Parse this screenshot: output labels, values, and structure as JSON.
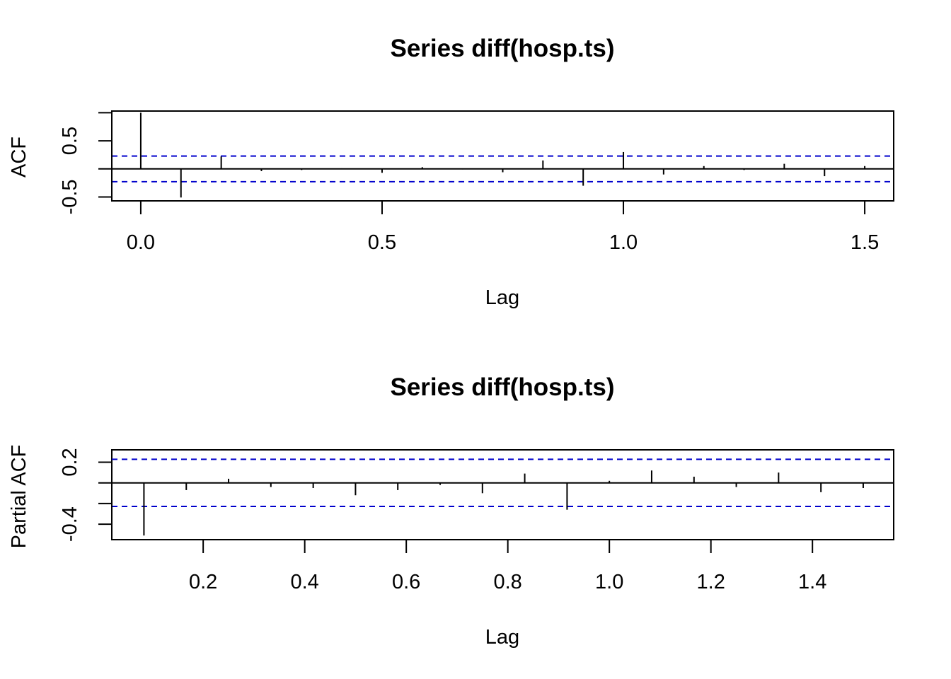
{
  "chart_data": [
    {
      "type": "bar",
      "title": "Series  diff(hosp.ts)",
      "xlabel": "Lag",
      "ylabel": "ACF",
      "xlim": [
        -0.06,
        1.56
      ],
      "ylim": [
        -0.57,
        1.03
      ],
      "x_ticks": [
        0.0,
        0.5,
        1.0,
        1.5
      ],
      "x_tick_labels": [
        "0.0",
        "0.5",
        "1.0",
        "1.5"
      ],
      "y_ticks": [
        -0.5,
        0.5
      ],
      "y_tick_labels": [
        "-0.5",
        "0.5"
      ],
      "y_minor_ticks": [
        -0.5,
        0.0,
        0.5,
        1.0
      ],
      "conf_limit": 0.228,
      "conf_color": "#0000cc",
      "lags": [
        0.0,
        0.0833,
        0.1667,
        0.25,
        0.3333,
        0.4167,
        0.5,
        0.5833,
        0.6667,
        0.75,
        0.8333,
        0.9167,
        1.0,
        1.0833,
        1.1667,
        1.25,
        1.3333,
        1.4167,
        1.5
      ],
      "values": [
        1.0,
        -0.51,
        0.22,
        -0.04,
        -0.02,
        0.01,
        -0.07,
        0.03,
        -0.01,
        -0.06,
        0.15,
        -0.3,
        0.3,
        -0.1,
        0.05,
        -0.02,
        0.09,
        -0.13,
        0.05
      ]
    },
    {
      "type": "bar",
      "title": "Series  diff(hosp.ts)",
      "xlabel": "Lag",
      "ylabel": "Partial ACF",
      "xlim": [
        0.02,
        1.56
      ],
      "ylim": [
        -0.55,
        0.32
      ],
      "x_ticks": [
        0.2,
        0.4,
        0.6,
        0.8,
        1.0,
        1.2,
        1.4
      ],
      "x_tick_labels": [
        "0.2",
        "0.4",
        "0.6",
        "0.8",
        "1.0",
        "1.2",
        "1.4"
      ],
      "y_ticks": [
        -0.4,
        0.2
      ],
      "y_tick_labels": [
        "-0.4",
        "0.2"
      ],
      "y_minor_ticks": [
        -0.4,
        -0.2,
        0.0,
        0.2
      ],
      "conf_limit": 0.228,
      "conf_color": "#0000cc",
      "lags": [
        0.0833,
        0.1667,
        0.25,
        0.3333,
        0.4167,
        0.5,
        0.5833,
        0.6667,
        0.75,
        0.8333,
        0.9167,
        1.0,
        1.0833,
        1.1667,
        1.25,
        1.3333,
        1.4167,
        1.5
      ],
      "values": [
        -0.51,
        -0.07,
        0.04,
        -0.04,
        -0.05,
        -0.12,
        -0.07,
        -0.02,
        -0.1,
        0.09,
        -0.26,
        0.02,
        0.12,
        0.06,
        -0.04,
        0.1,
        -0.09,
        -0.05
      ]
    }
  ]
}
